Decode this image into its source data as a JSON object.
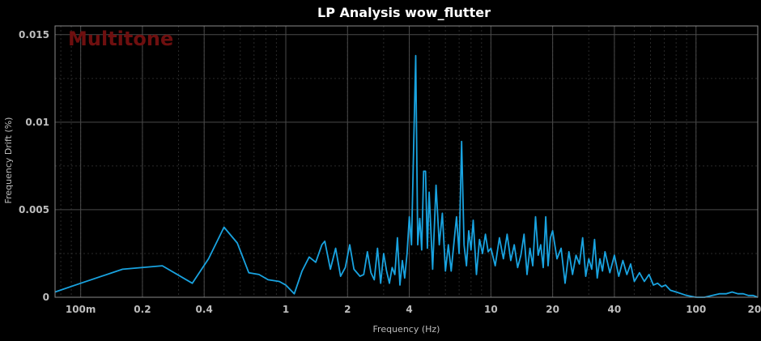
{
  "chart_data": {
    "type": "line",
    "title": "LP Analysis  wow_flutter",
    "watermark": "Multitone",
    "xlabel": "Frequency (Hz)",
    "ylabel": "Frequency Drift (%)",
    "x_scale": "log",
    "xlim": [
      0.075,
      200
    ],
    "ylim": [
      0,
      0.0155
    ],
    "x_ticks": [
      {
        "v": 0.1,
        "label": "100m"
      },
      {
        "v": 0.2,
        "label": "0.2"
      },
      {
        "v": 0.4,
        "label": "0.4"
      },
      {
        "v": 1,
        "label": "1"
      },
      {
        "v": 2,
        "label": "2"
      },
      {
        "v": 4,
        "label": "4"
      },
      {
        "v": 10,
        "label": "10"
      },
      {
        "v": 20,
        "label": "20"
      },
      {
        "v": 40,
        "label": "40"
      },
      {
        "v": 100,
        "label": "100"
      },
      {
        "v": 200,
        "label": "200"
      }
    ],
    "y_ticks": [
      {
        "v": 0,
        "label": "0"
      },
      {
        "v": 0.005,
        "label": "0.005"
      },
      {
        "v": 0.01,
        "label": "0.01"
      },
      {
        "v": 0.015,
        "label": "0.015"
      }
    ],
    "grid": true,
    "color": "#19a3e0",
    "series": [
      {
        "x": [
          0.075,
          0.1,
          0.16,
          0.25,
          0.35,
          0.42,
          0.5,
          0.58,
          0.66,
          0.74,
          0.82,
          0.93,
          1.0,
          1.1,
          1.2,
          1.3,
          1.4,
          1.5,
          1.55,
          1.65,
          1.75,
          1.85,
          1.95,
          2.05,
          2.15,
          2.3,
          2.4,
          2.5,
          2.6,
          2.7,
          2.8,
          2.9,
          3.0,
          3.1,
          3.2,
          3.3,
          3.4,
          3.5,
          3.6,
          3.7,
          3.8,
          3.9,
          4.0,
          4.1,
          4.2,
          4.3,
          4.4,
          4.5,
          4.6,
          4.7,
          4.8,
          4.9,
          5.0,
          5.2,
          5.4,
          5.6,
          5.8,
          6.0,
          6.2,
          6.4,
          6.6,
          6.8,
          7.0,
          7.2,
          7.4,
          7.6,
          7.8,
          8.0,
          8.2,
          8.5,
          8.8,
          9.1,
          9.4,
          9.7,
          10.0,
          10.5,
          11.0,
          11.5,
          12.0,
          12.5,
          13.0,
          13.5,
          14.0,
          14.5,
          15.0,
          15.5,
          16.0,
          16.5,
          17.0,
          17.5,
          18.0,
          18.5,
          19.0,
          19.5,
          20.0,
          21.0,
          22.0,
          23.0,
          24.0,
          25.0,
          26.0,
          27.0,
          28.0,
          29.0,
          30.0,
          31.0,
          32.0,
          33.0,
          34.0,
          35.0,
          36.0,
          38.0,
          40.0,
          42.0,
          44.0,
          46.0,
          48.0,
          50.0,
          53.0,
          56.0,
          59.0,
          62.0,
          65.0,
          68.0,
          71.0,
          75.0,
          80.0,
          85.0,
          90.0,
          100.0,
          110.0,
          120.0,
          130.0,
          140.0,
          150.0,
          160.0,
          170.0,
          180.0,
          190.0,
          200.0
        ],
        "y": [
          0.0003,
          0.0008,
          0.0016,
          0.0018,
          0.0008,
          0.0022,
          0.004,
          0.0031,
          0.0014,
          0.0013,
          0.001,
          0.0009,
          0.0007,
          0.0002,
          0.0015,
          0.0023,
          0.002,
          0.003,
          0.0032,
          0.0016,
          0.0028,
          0.0012,
          0.0017,
          0.003,
          0.0016,
          0.0012,
          0.0013,
          0.0026,
          0.0014,
          0.001,
          0.0028,
          0.0008,
          0.0025,
          0.0015,
          0.0008,
          0.0017,
          0.0013,
          0.0034,
          0.0007,
          0.0021,
          0.0011,
          0.0025,
          0.0046,
          0.003,
          0.0085,
          0.0138,
          0.003,
          0.0045,
          0.0027,
          0.0072,
          0.0072,
          0.0028,
          0.006,
          0.0016,
          0.0064,
          0.003,
          0.0048,
          0.0015,
          0.003,
          0.0015,
          0.0031,
          0.0046,
          0.0025,
          0.0089,
          0.003,
          0.0018,
          0.0038,
          0.0027,
          0.0044,
          0.0013,
          0.0033,
          0.0025,
          0.0036,
          0.0026,
          0.0028,
          0.0018,
          0.0034,
          0.0022,
          0.0036,
          0.0021,
          0.003,
          0.0017,
          0.0024,
          0.0036,
          0.0013,
          0.0028,
          0.0018,
          0.0046,
          0.0024,
          0.003,
          0.0017,
          0.0046,
          0.0018,
          0.0034,
          0.0038,
          0.0022,
          0.0028,
          0.0008,
          0.0026,
          0.0013,
          0.0024,
          0.0019,
          0.0034,
          0.0012,
          0.0022,
          0.0016,
          0.0033,
          0.0011,
          0.0022,
          0.0015,
          0.0026,
          0.0014,
          0.0024,
          0.0012,
          0.0021,
          0.0013,
          0.0019,
          0.0009,
          0.0014,
          0.0009,
          0.0013,
          0.0007,
          0.0008,
          0.0006,
          0.0007,
          0.0004,
          0.0003,
          0.0002,
          0.0001,
          0.0,
          0.0,
          0.0001,
          0.0002,
          0.0002,
          0.0003,
          0.0002,
          0.0002,
          0.0001,
          0.0001,
          0.0
        ]
      }
    ]
  }
}
